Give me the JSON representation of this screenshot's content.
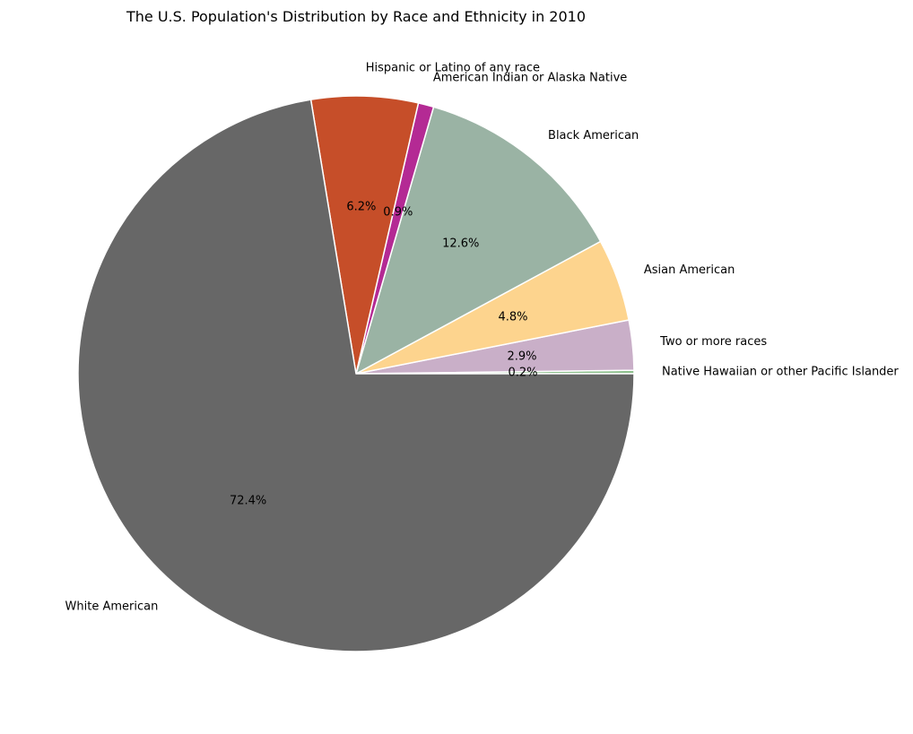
{
  "chart_data": {
    "type": "pie",
    "title": "The U.S. Population's Distribution by Race and Ethnicity in 2010",
    "start_angle_deg": 0,
    "direction": "counterclockwise",
    "edge_color": "#ffffff",
    "slices": [
      {
        "label": "Native Hawaiian or other Pacific Islander",
        "value": 0.2,
        "pct_label": "0.2%",
        "color": "#8dbf8d"
      },
      {
        "label": "Two or more races",
        "value": 2.9,
        "pct_label": "2.9%",
        "color": "#c9afc8"
      },
      {
        "label": "Asian American",
        "value": 4.8,
        "pct_label": "4.8%",
        "color": "#fdd48e"
      },
      {
        "label": "Black American",
        "value": 12.6,
        "pct_label": "12.6%",
        "color": "#9ab3a4"
      },
      {
        "label": "American Indian or Alaska Native",
        "value": 0.9,
        "pct_label": "0.9%",
        "color": "#b42a94"
      },
      {
        "label": "Hispanic or Latino of any race",
        "value": 6.2,
        "pct_label": "6.2%",
        "color": "#c64e29"
      },
      {
        "label": "White American",
        "value": 72.4,
        "pct_label": "72.4%",
        "color": "#676767"
      }
    ]
  }
}
